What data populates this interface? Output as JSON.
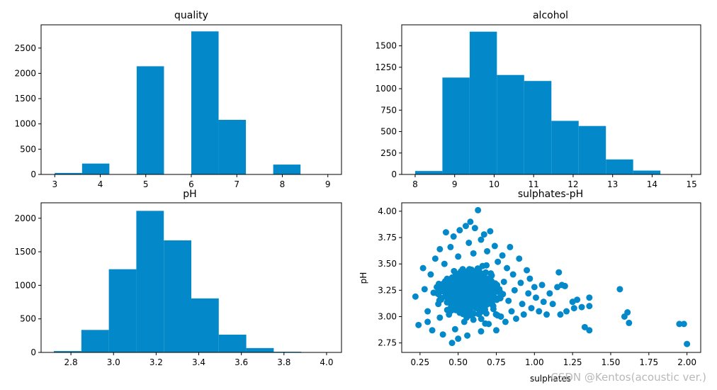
{
  "watermark": "CSDN @Kentos(acoustic ver.)",
  "colors": {
    "bar": "#0389c9",
    "point": "#0389c9",
    "axis": "#000000"
  },
  "chart_data": [
    {
      "type": "bar",
      "title": "quality",
      "xlabel": "",
      "ylabel": "",
      "xlim": [
        2.7,
        9.3
      ],
      "ylim": [
        0,
        2960
      ],
      "xticks": [
        3,
        4,
        5,
        6,
        7,
        8,
        9
      ],
      "yticks": [
        0,
        500,
        1000,
        1500,
        2000,
        2500
      ],
      "bin_edges": [
        3,
        3.6,
        4.2,
        4.8,
        5.4,
        6,
        6.6,
        7.2,
        7.8,
        8.4,
        9
      ],
      "values": [
        30,
        215,
        0,
        2140,
        0,
        2830,
        1080,
        0,
        195,
        0
      ],
      "grid": false
    },
    {
      "type": "bar",
      "title": "alcohol",
      "xlabel": "",
      "ylabel": "",
      "xlim": [
        7.66,
        15.23
      ],
      "ylim": [
        0,
        1745
      ],
      "xticks": [
        8,
        9,
        10,
        11,
        12,
        13,
        14,
        15
      ],
      "yticks": [
        0,
        250,
        500,
        750,
        1000,
        1250,
        1500
      ],
      "bin_edges": [
        8,
        8.69,
        9.38,
        10.07,
        10.76,
        11.45,
        12.14,
        12.83,
        13.52,
        14.21,
        14.9
      ],
      "values": [
        40,
        1130,
        1665,
        1160,
        1090,
        625,
        565,
        175,
        45,
        0
      ],
      "grid": false
    },
    {
      "type": "bar",
      "title": "pH",
      "xlabel": "",
      "ylabel": "",
      "xlim": [
        2.66,
        4.07
      ],
      "ylim": [
        0,
        2230
      ],
      "xticks": [
        "2.8",
        "3.0",
        "3.2",
        "3.4",
        "3.6",
        "3.8",
        "4.0"
      ],
      "xtick_values": [
        2.8,
        3.0,
        3.2,
        3.4,
        3.6,
        3.8,
        4.0
      ],
      "yticks": [
        0,
        500,
        1000,
        1500,
        2000
      ],
      "bin_edges": [
        2.72,
        2.849,
        2.978,
        3.107,
        3.236,
        3.365,
        3.494,
        3.623,
        3.752,
        3.881,
        4.01
      ],
      "values": [
        20,
        335,
        1240,
        2110,
        1670,
        805,
        265,
        65,
        10,
        0
      ],
      "grid": false
    },
    {
      "type": "scatter",
      "title": "sulphates-pH",
      "xlabel": "sulphates",
      "ylabel": "pH",
      "xlim": [
        0.13,
        2.09
      ],
      "ylim": [
        2.66,
        4.08
      ],
      "xticks": [
        "0.25",
        "0.50",
        "0.75",
        "1.00",
        "1.25",
        "1.50",
        "1.75",
        "2.00"
      ],
      "xtick_values": [
        0.25,
        0.5,
        0.75,
        1.0,
        1.25,
        1.5,
        1.75,
        2.0
      ],
      "yticks": [
        "2.75",
        "3.00",
        "3.25",
        "3.50",
        "3.75",
        "4.00"
      ],
      "ytick_values": [
        2.75,
        3.0,
        3.25,
        3.5,
        3.75,
        4.0
      ],
      "points": [
        [
          0.22,
          3.19
        ],
        [
          0.24,
          2.92
        ],
        [
          0.27,
          3.46
        ],
        [
          0.28,
          3.26
        ],
        [
          0.3,
          3.05
        ],
        [
          0.3,
          2.95
        ],
        [
          0.32,
          3.4
        ],
        [
          0.33,
          2.87
        ],
        [
          0.35,
          3.55
        ],
        [
          0.36,
          3.28
        ],
        [
          0.37,
          3.12
        ],
        [
          0.38,
          2.99
        ],
        [
          0.38,
          3.64
        ],
        [
          0.4,
          3.31
        ],
        [
          0.4,
          2.83
        ],
        [
          0.41,
          3.5
        ],
        [
          0.42,
          3.8
        ],
        [
          0.43,
          3.17
        ],
        [
          0.44,
          3.02
        ],
        [
          0.45,
          3.66
        ],
        [
          0.46,
          2.75
        ],
        [
          0.46,
          3.37
        ],
        [
          0.47,
          3.76
        ],
        [
          0.48,
          2.88
        ],
        [
          0.49,
          3.22
        ],
        [
          0.5,
          3.57
        ],
        [
          0.5,
          2.79
        ],
        [
          0.51,
          3.82
        ],
        [
          0.52,
          3.08
        ],
        [
          0.53,
          3.45
        ],
        [
          0.54,
          2.95
        ],
        [
          0.55,
          3.86
        ],
        [
          0.56,
          3.29
        ],
        [
          0.56,
          2.82
        ],
        [
          0.57,
          3.7
        ],
        [
          0.58,
          3.9
        ],
        [
          0.59,
          3.14
        ],
        [
          0.6,
          3.6
        ],
        [
          0.6,
          2.97
        ],
        [
          0.61,
          3.84
        ],
        [
          0.62,
          3.35
        ],
        [
          0.63,
          4.01
        ],
        [
          0.64,
          3.03
        ],
        [
          0.65,
          3.73
        ],
        [
          0.65,
          2.86
        ],
        [
          0.66,
          3.48
        ],
        [
          0.67,
          3.78
        ],
        [
          0.68,
          3.2
        ],
        [
          0.69,
          3.62
        ],
        [
          0.7,
          2.93
        ],
        [
          0.71,
          3.81
        ],
        [
          0.72,
          3.39
        ],
        [
          0.73,
          3.1
        ],
        [
          0.74,
          3.67
        ],
        [
          0.75,
          2.87
        ],
        [
          0.76,
          3.52
        ],
        [
          0.77,
          3.26
        ],
        [
          0.78,
          3.0
        ],
        [
          0.79,
          3.58
        ],
        [
          0.8,
          3.33
        ],
        [
          0.81,
          2.95
        ],
        [
          0.82,
          3.46
        ],
        [
          0.83,
          3.15
        ],
        [
          0.84,
          3.66
        ],
        [
          0.85,
          3.05
        ],
        [
          0.86,
          3.4
        ],
        [
          0.87,
          3.25
        ],
        [
          0.88,
          2.98
        ],
        [
          0.9,
          3.55
        ],
        [
          0.91,
          3.32
        ],
        [
          0.92,
          3.12
        ],
        [
          0.93,
          3.02
        ],
        [
          0.95,
          3.44
        ],
        [
          0.96,
          3.22
        ],
        [
          0.97,
          3.36
        ],
        [
          0.98,
          3.08
        ],
        [
          1.0,
          3.28
        ],
        [
          1.01,
          3.18
        ],
        [
          1.03,
          3.05
        ],
        [
          1.05,
          3.3
        ],
        [
          1.06,
          3.14
        ],
        [
          1.08,
          3.02
        ],
        [
          1.1,
          3.22
        ],
        [
          1.12,
          3.12
        ],
        [
          1.15,
          3.28
        ],
        [
          1.16,
          3.42
        ],
        [
          1.17,
          3.02
        ],
        [
          1.18,
          3.3
        ],
        [
          1.2,
          3.29
        ],
        [
          1.21,
          3.05
        ],
        [
          1.25,
          3.14
        ],
        [
          1.26,
          3.08
        ],
        [
          1.28,
          3.16
        ],
        [
          1.31,
          3.09
        ],
        [
          1.33,
          2.9
        ],
        [
          1.36,
          2.87
        ],
        [
          1.36,
          3.18
        ],
        [
          1.36,
          3.1
        ],
        [
          1.56,
          3.26
        ],
        [
          1.59,
          3.0
        ],
        [
          1.61,
          3.04
        ],
        [
          1.62,
          2.94
        ],
        [
          1.95,
          2.93
        ],
        [
          1.98,
          2.93
        ],
        [
          2.0,
          2.74
        ]
      ],
      "cluster": {
        "x_range": [
          0.28,
          0.98
        ],
        "y_range": [
          2.86,
          3.62
        ],
        "note_visible_count": "dense"
      },
      "grid": false
    }
  ]
}
